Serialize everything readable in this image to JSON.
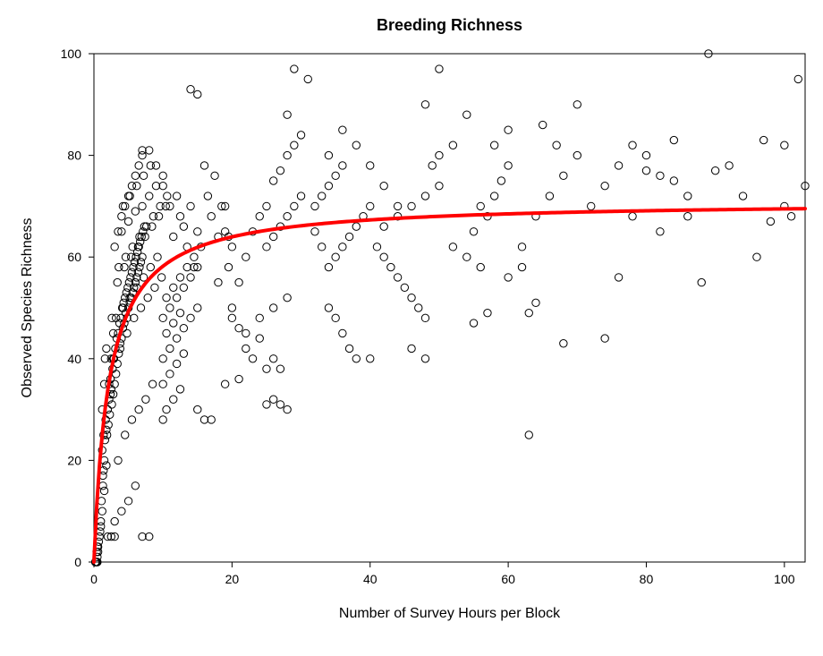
{
  "chart": {
    "type": "scatter",
    "title": "Breeding Richness",
    "title_fontsize": 18,
    "title_fontweight": "bold",
    "xlabel": "Number of Survey Hours per Block",
    "ylabel": "Observed Species Richness",
    "label_fontsize": 16,
    "tick_fontsize": 14,
    "background_color": "#ffffff",
    "axis_color": "#000000",
    "xlim": [
      0,
      103
    ],
    "ylim": [
      0,
      100
    ],
    "xticks": [
      0,
      20,
      40,
      60,
      80,
      100
    ],
    "yticks": [
      0,
      20,
      40,
      60,
      80,
      100
    ],
    "tick_length": 6,
    "box": true,
    "marker": {
      "shape": "circle",
      "radius": 4.2,
      "fill": "none",
      "stroke": "#000000",
      "stroke_width": 1
    },
    "curve": {
      "color": "#ff0000",
      "width": 4,
      "asymptote": 71,
      "half_sat": 2.2
    },
    "points": [
      [
        0.2,
        0
      ],
      [
        0.3,
        0
      ],
      [
        0.5,
        1
      ],
      [
        0.4,
        2
      ],
      [
        0.6,
        3
      ],
      [
        0.5,
        3
      ],
      [
        0.7,
        4
      ],
      [
        0.8,
        5
      ],
      [
        0.6,
        2
      ],
      [
        0.9,
        6
      ],
      [
        0.5,
        0
      ],
      [
        0.4,
        0
      ],
      [
        1.0,
        8
      ],
      [
        1.2,
        10
      ],
      [
        1.1,
        12
      ],
      [
        1.3,
        15
      ],
      [
        1.0,
        7
      ],
      [
        1.4,
        18
      ],
      [
        1.5,
        20
      ],
      [
        1.2,
        22
      ],
      [
        1.6,
        24
      ],
      [
        1.3,
        17
      ],
      [
        1.8,
        26
      ],
      [
        1.5,
        14
      ],
      [
        1.7,
        28
      ],
      [
        2.0,
        30
      ],
      [
        1.9,
        25
      ],
      [
        2.2,
        32
      ],
      [
        1.8,
        19
      ],
      [
        2.5,
        34
      ],
      [
        2.1,
        27
      ],
      [
        2.4,
        36
      ],
      [
        2.3,
        29
      ],
      [
        2.7,
        38
      ],
      [
        2.6,
        31
      ],
      [
        2.9,
        40
      ],
      [
        2.8,
        33
      ],
      [
        3.1,
        42
      ],
      [
        3.0,
        35
      ],
      [
        3.3,
        44
      ],
      [
        3.2,
        37
      ],
      [
        3.5,
        45
      ],
      [
        3.4,
        39
      ],
      [
        3.7,
        47
      ],
      [
        3.6,
        41
      ],
      [
        3.9,
        48
      ],
      [
        3.8,
        43
      ],
      [
        4.1,
        50
      ],
      [
        4.0,
        44
      ],
      [
        4.3,
        51
      ],
      [
        4.2,
        46
      ],
      [
        4.5,
        52
      ],
      [
        4.4,
        47
      ],
      [
        4.7,
        53
      ],
      [
        4.6,
        49
      ],
      [
        4.9,
        54
      ],
      [
        4.8,
        48
      ],
      [
        5.1,
        55
      ],
      [
        5.0,
        50
      ],
      [
        5.3,
        56
      ],
      [
        5.2,
        51
      ],
      [
        5.5,
        57
      ],
      [
        5.4,
        52
      ],
      [
        5.7,
        58
      ],
      [
        5.6,
        53
      ],
      [
        5.9,
        59
      ],
      [
        5.8,
        54
      ],
      [
        6.1,
        60
      ],
      [
        6.0,
        55
      ],
      [
        6.3,
        61
      ],
      [
        6.2,
        56
      ],
      [
        6.5,
        62
      ],
      [
        6.4,
        57
      ],
      [
        6.7,
        63
      ],
      [
        6.6,
        58
      ],
      [
        6.9,
        64
      ],
      [
        6.8,
        59
      ],
      [
        7.1,
        65
      ],
      [
        7.0,
        60
      ],
      [
        7.3,
        66
      ],
      [
        2.0,
        5
      ],
      [
        2.5,
        5
      ],
      [
        3.0,
        5
      ],
      [
        7.0,
        5
      ],
      [
        8.0,
        5
      ],
      [
        3.0,
        8
      ],
      [
        4.0,
        10
      ],
      [
        5.0,
        12
      ],
      [
        6.0,
        15
      ],
      [
        3.5,
        20
      ],
      [
        4.5,
        25
      ],
      [
        5.5,
        28
      ],
      [
        6.5,
        30
      ],
      [
        7.5,
        32
      ],
      [
        8.5,
        35
      ],
      [
        2.8,
        40
      ],
      [
        3.8,
        42
      ],
      [
        4.8,
        45
      ],
      [
        5.8,
        48
      ],
      [
        6.8,
        50
      ],
      [
        7.8,
        52
      ],
      [
        8.8,
        54
      ],
      [
        9.8,
        56
      ],
      [
        3.2,
        48
      ],
      [
        4.2,
        50
      ],
      [
        5.2,
        52
      ],
      [
        6.2,
        54
      ],
      [
        7.2,
        56
      ],
      [
        8.2,
        58
      ],
      [
        9.2,
        60
      ],
      [
        1.5,
        35
      ],
      [
        2.5,
        40
      ],
      [
        1.8,
        42
      ],
      [
        2.8,
        45
      ],
      [
        1.2,
        30
      ],
      [
        2.2,
        35
      ],
      [
        1.6,
        40
      ],
      [
        2.6,
        48
      ],
      [
        1.4,
        25
      ],
      [
        2.4,
        33
      ],
      [
        3.4,
        55
      ],
      [
        4.4,
        58
      ],
      [
        5.4,
        60
      ],
      [
        6.4,
        62
      ],
      [
        7.4,
        64
      ],
      [
        8.4,
        66
      ],
      [
        9.4,
        68
      ],
      [
        10.4,
        70
      ],
      [
        3.6,
        58
      ],
      [
        4.6,
        60
      ],
      [
        5.6,
        62
      ],
      [
        6.6,
        64
      ],
      [
        7.6,
        66
      ],
      [
        8.6,
        68
      ],
      [
        9.6,
        70
      ],
      [
        10.6,
        72
      ],
      [
        4.0,
        65
      ],
      [
        5.0,
        67
      ],
      [
        6.0,
        69
      ],
      [
        7.0,
        70
      ],
      [
        8.0,
        72
      ],
      [
        9.0,
        74
      ],
      [
        10.0,
        76
      ],
      [
        4.2,
        70
      ],
      [
        5.2,
        72
      ],
      [
        6.2,
        74
      ],
      [
        7.2,
        76
      ],
      [
        8.2,
        78
      ],
      [
        3.0,
        62
      ],
      [
        3.5,
        65
      ],
      [
        4.0,
        68
      ],
      [
        4.5,
        70
      ],
      [
        5.0,
        72
      ],
      [
        5.5,
        74
      ],
      [
        6.0,
        76
      ],
      [
        6.5,
        78
      ],
      [
        7.0,
        80
      ],
      [
        8.0,
        81
      ],
      [
        7.0,
        81
      ],
      [
        9.0,
        78
      ],
      [
        10.0,
        74
      ],
      [
        11.0,
        70
      ],
      [
        11.5,
        64
      ],
      [
        12.0,
        72
      ],
      [
        12.5,
        68
      ],
      [
        13.0,
        66
      ],
      [
        13.5,
        62
      ],
      [
        14.0,
        70
      ],
      [
        14.5,
        58
      ],
      [
        15.0,
        65
      ],
      [
        10.5,
        52
      ],
      [
        11.5,
        54
      ],
      [
        12.5,
        56
      ],
      [
        13.5,
        58
      ],
      [
        14.5,
        60
      ],
      [
        15.5,
        62
      ],
      [
        10.0,
        48
      ],
      [
        11.0,
        50
      ],
      [
        12.0,
        52
      ],
      [
        13.0,
        54
      ],
      [
        14.0,
        56
      ],
      [
        15.0,
        58
      ],
      [
        10.5,
        45
      ],
      [
        11.5,
        47
      ],
      [
        12.5,
        49
      ],
      [
        10.0,
        40
      ],
      [
        11.0,
        42
      ],
      [
        12.0,
        44
      ],
      [
        13.0,
        46
      ],
      [
        14.0,
        48
      ],
      [
        15.0,
        50
      ],
      [
        10.0,
        35
      ],
      [
        11.0,
        37
      ],
      [
        12.0,
        39
      ],
      [
        13.0,
        41
      ],
      [
        10.5,
        30
      ],
      [
        11.5,
        32
      ],
      [
        12.5,
        34
      ],
      [
        10.0,
        28
      ],
      [
        15.0,
        30
      ],
      [
        14.0,
        93
      ],
      [
        15.0,
        92
      ],
      [
        16.0,
        78
      ],
      [
        16.5,
        72
      ],
      [
        17.0,
        68
      ],
      [
        17.5,
        76
      ],
      [
        18.0,
        64
      ],
      [
        18.5,
        70
      ],
      [
        19.0,
        65
      ],
      [
        18.0,
        55
      ],
      [
        19.5,
        58
      ],
      [
        20.0,
        62
      ],
      [
        19.0,
        70
      ],
      [
        19.5,
        64
      ],
      [
        20.0,
        50
      ],
      [
        21.0,
        55
      ],
      [
        22.0,
        60
      ],
      [
        23.0,
        65
      ],
      [
        24.0,
        68
      ],
      [
        25.0,
        70
      ],
      [
        22.0,
        45
      ],
      [
        24.0,
        48
      ],
      [
        26.0,
        50
      ],
      [
        28.0,
        52
      ],
      [
        20.0,
        48
      ],
      [
        21.0,
        46
      ],
      [
        22.0,
        42
      ],
      [
        23.0,
        40
      ],
      [
        24.0,
        44
      ],
      [
        25.0,
        38
      ],
      [
        26.0,
        40
      ],
      [
        27.0,
        38
      ],
      [
        25.0,
        31
      ],
      [
        26.0,
        32
      ],
      [
        27.0,
        31
      ],
      [
        28.0,
        30
      ],
      [
        16.0,
        28
      ],
      [
        17.0,
        28
      ],
      [
        19.0,
        35
      ],
      [
        21.0,
        36
      ],
      [
        25.0,
        62
      ],
      [
        26.0,
        64
      ],
      [
        27.0,
        66
      ],
      [
        28.0,
        68
      ],
      [
        29.0,
        70
      ],
      [
        30.0,
        72
      ],
      [
        26.0,
        75
      ],
      [
        27.0,
        77
      ],
      [
        28.0,
        80
      ],
      [
        29.0,
        82
      ],
      [
        30.0,
        84
      ],
      [
        28.0,
        88
      ],
      [
        29.0,
        97
      ],
      [
        32.0,
        70
      ],
      [
        33.0,
        72
      ],
      [
        34.0,
        74
      ],
      [
        35.0,
        76
      ],
      [
        36.0,
        78
      ],
      [
        32.0,
        65
      ],
      [
        33.0,
        62
      ],
      [
        34.0,
        58
      ],
      [
        35.0,
        60
      ],
      [
        36.0,
        62
      ],
      [
        37.0,
        64
      ],
      [
        38.0,
        66
      ],
      [
        39.0,
        68
      ],
      [
        40.0,
        70
      ],
      [
        34.0,
        50
      ],
      [
        35.0,
        48
      ],
      [
        36.0,
        45
      ],
      [
        37.0,
        42
      ],
      [
        38.0,
        40
      ],
      [
        40.0,
        40
      ],
      [
        31.0,
        95
      ],
      [
        34.0,
        80
      ],
      [
        36.0,
        85
      ],
      [
        38.0,
        82
      ],
      [
        40.0,
        78
      ],
      [
        42.0,
        74
      ],
      [
        44.0,
        70
      ],
      [
        41.0,
        62
      ],
      [
        42.0,
        60
      ],
      [
        43.0,
        58
      ],
      [
        44.0,
        56
      ],
      [
        45.0,
        54
      ],
      [
        46.0,
        52
      ],
      [
        47.0,
        50
      ],
      [
        48.0,
        48
      ],
      [
        42.0,
        66
      ],
      [
        44.0,
        68
      ],
      [
        46.0,
        70
      ],
      [
        48.0,
        72
      ],
      [
        50.0,
        74
      ],
      [
        46.0,
        42
      ],
      [
        48.0,
        40
      ],
      [
        49.0,
        78
      ],
      [
        50.0,
        80
      ],
      [
        52.0,
        82
      ],
      [
        54.0,
        88
      ],
      [
        48.0,
        90
      ],
      [
        50.0,
        97
      ],
      [
        52.0,
        62
      ],
      [
        54.0,
        60
      ],
      [
        56.0,
        58
      ],
      [
        55.0,
        65
      ],
      [
        56.0,
        70
      ],
      [
        57.0,
        68
      ],
      [
        58.0,
        72
      ],
      [
        59.0,
        75
      ],
      [
        60.0,
        78
      ],
      [
        55.0,
        47
      ],
      [
        57.0,
        49
      ],
      [
        58.0,
        82
      ],
      [
        60.0,
        85
      ],
      [
        60.0,
        56
      ],
      [
        62.0,
        58
      ],
      [
        63.0,
        49
      ],
      [
        64.0,
        51
      ],
      [
        63.0,
        25
      ],
      [
        62.0,
        62
      ],
      [
        64.0,
        68
      ],
      [
        66.0,
        72
      ],
      [
        68.0,
        76
      ],
      [
        70.0,
        80
      ],
      [
        65.0,
        86
      ],
      [
        67.0,
        82
      ],
      [
        68.0,
        43
      ],
      [
        70.0,
        90
      ],
      [
        74.0,
        44
      ],
      [
        72.0,
        70
      ],
      [
        74.0,
        74
      ],
      [
        76.0,
        78
      ],
      [
        76.0,
        56
      ],
      [
        78.0,
        68
      ],
      [
        78.0,
        82
      ],
      [
        80.0,
        80
      ],
      [
        80.0,
        77
      ],
      [
        82.0,
        76
      ],
      [
        82.0,
        65
      ],
      [
        84.0,
        83
      ],
      [
        84.0,
        75
      ],
      [
        86.0,
        72
      ],
      [
        86.0,
        68
      ],
      [
        88.0,
        55
      ],
      [
        89.0,
        100
      ],
      [
        90.0,
        77
      ],
      [
        92.0,
        78
      ],
      [
        94.0,
        72
      ],
      [
        96.0,
        60
      ],
      [
        97.0,
        83
      ],
      [
        98.0,
        67
      ],
      [
        100.0,
        82
      ],
      [
        100.0,
        70
      ],
      [
        102.0,
        95
      ],
      [
        103.0,
        74
      ],
      [
        101.0,
        68
      ]
    ]
  }
}
